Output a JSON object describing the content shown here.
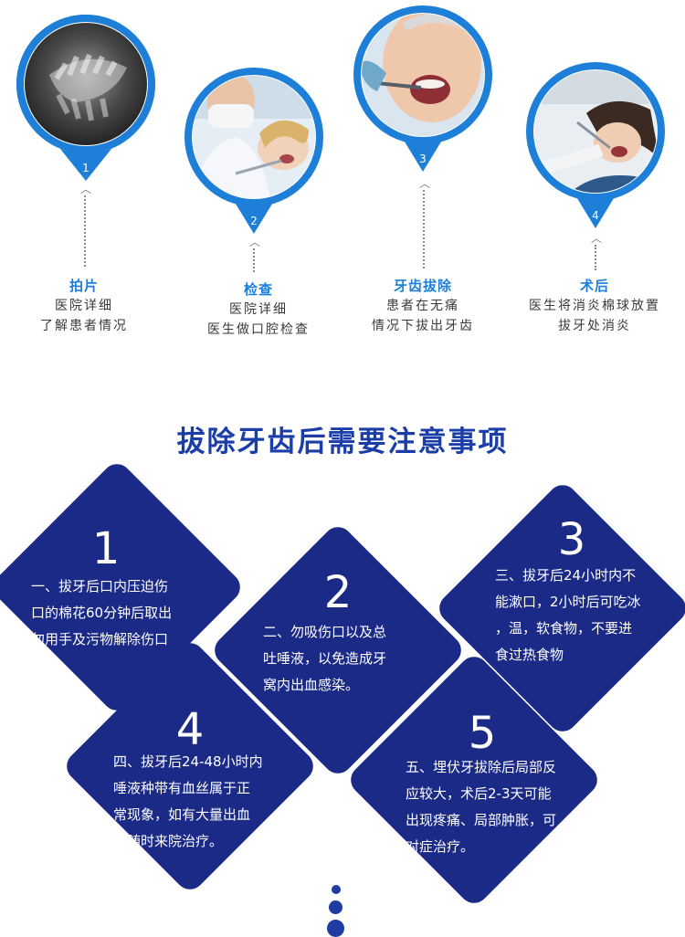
{
  "steps": [
    {
      "number": "1",
      "title": "拍片",
      "desc": "医院详细\n了解患者情况",
      "photo": "x-ray-photo"
    },
    {
      "number": "2",
      "title": "检查",
      "desc": "医院详细\n医生做口腔检查",
      "photo": "dental-exam-photo"
    },
    {
      "number": "3",
      "title": "牙齿拔除",
      "desc": "患者在无痛\n情况下拔出牙齿",
      "photo": "extraction-photo"
    },
    {
      "number": "4",
      "title": "术后",
      "desc": "医生将消炎棉球放置\n拔牙处消炎",
      "photo": "post-op-photo"
    }
  ],
  "heading": "拔除牙齿后需要注意事项",
  "notes": [
    {
      "number": "1",
      "text": "一、拔牙后口内压迫伤\n口的棉花60分钟后取出\n勿用手及污物解除伤口"
    },
    {
      "number": "2",
      "text": "二、勿吸伤口以及总\n吐唾液，以免造成牙\n窝内出血感染。"
    },
    {
      "number": "3",
      "text": "三、拔牙后24小时内不\n能漱口，2小时后可吃冰\n，温，软食物，不要进\n食过热食物"
    },
    {
      "number": "4",
      "text": "四、拔牙后24-48小时内\n唾液种带有血丝属于正\n常现象，如有大量出血\n可随时来院治疗。"
    },
    {
      "number": "5",
      "text": "五、埋伏牙拔除后局部反\n应较大，术后2-3天可能\n出现疼痛、局部肿胀，可\n对症治疗。"
    }
  ],
  "colors": {
    "pin_blue": "#1e7fd8",
    "diamond_navy": "#1b2a86",
    "heading_blue": "#1a3da8"
  }
}
